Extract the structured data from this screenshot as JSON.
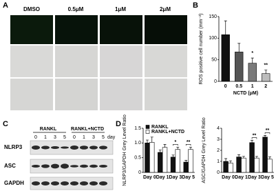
{
  "panel_labels": [
    "A",
    "B",
    "C",
    "D"
  ],
  "microscopy": {
    "columns": [
      "DMSO",
      "0.5μM",
      "1μM",
      "2μM"
    ]
  },
  "western_blot": {
    "groups": [
      "RANKL",
      "RANKL+NCTD"
    ],
    "lanes": [
      "0",
      "1",
      "3",
      "5",
      "0",
      "1",
      "3",
      "5"
    ],
    "unit": "day",
    "rows": [
      "NLRP3",
      "ASC",
      "GAPDH"
    ]
  },
  "chart_data": [
    {
      "type": "bar",
      "ylabel": "ROS positive cell number (mm⁻²)",
      "xlabel": "NCTD (μM)",
      "categories": [
        "0",
        "0.5",
        "1",
        "2"
      ],
      "values": [
        108,
        68,
        42,
        18
      ],
      "errors": [
        32,
        20,
        12,
        8
      ],
      "colors": [
        "#111111",
        "#555555",
        "#7a7a7a",
        "#bdbdbd"
      ],
      "ylim": [
        0,
        150
      ],
      "yticks": [
        0,
        50,
        100,
        150
      ],
      "annotations": [
        {
          "text": "*",
          "x": "1"
        },
        {
          "text": "**",
          "x": "2"
        }
      ]
    },
    {
      "type": "bar",
      "ylabel": "NLRP3/GAPDH Grey Level Ratio",
      "categories": [
        "Day 0",
        "Day 1",
        "Day 3",
        "Day 5"
      ],
      "series": [
        {
          "name": "RANKL",
          "color": "#111111",
          "values": [
            1.0,
            0.68,
            0.52,
            0.35
          ],
          "errors": [
            0.1,
            0.08,
            0.07,
            0.06
          ]
        },
        {
          "name": "RANKL+NCTD",
          "color": "#ffffff",
          "values": [
            1.02,
            0.85,
            0.78,
            0.78
          ],
          "errors": [
            0.18,
            0.1,
            0.08,
            0.08
          ]
        }
      ],
      "ylim": [
        0,
        1.5
      ],
      "yticks": [
        0,
        0.5,
        {
          "value": 1,
          "label": "1.0"
        },
        1.5
      ],
      "legend": "upper left",
      "annotations": [
        {
          "text": "*",
          "x": "Day 3"
        },
        {
          "text": "**",
          "x": "Day 5"
        }
      ]
    },
    {
      "type": "bar",
      "ylabel": "ASC/GAPDH Grey Level Ratio",
      "categories": [
        "Day 0",
        "Day 1",
        "Day 3",
        "Day 5"
      ],
      "series": [
        {
          "name": "RANKL",
          "color": "#111111",
          "values": [
            1.0,
            1.4,
            2.7,
            3.2
          ],
          "errors": [
            0.25,
            0.2,
            0.2,
            0.15
          ]
        },
        {
          "name": "RANKL+NCTD",
          "color": "#ffffff",
          "values": [
            0.85,
            1.3,
            1.3,
            1.2
          ],
          "errors": [
            0.2,
            0.15,
            0.15,
            0.2
          ]
        }
      ],
      "ylim": [
        0,
        4
      ],
      "yticks": [
        0,
        1,
        2,
        3,
        4
      ],
      "annotations": [
        {
          "text": "**",
          "x": "Day 3"
        },
        {
          "text": "**",
          "x": "Day 5"
        }
      ]
    }
  ]
}
